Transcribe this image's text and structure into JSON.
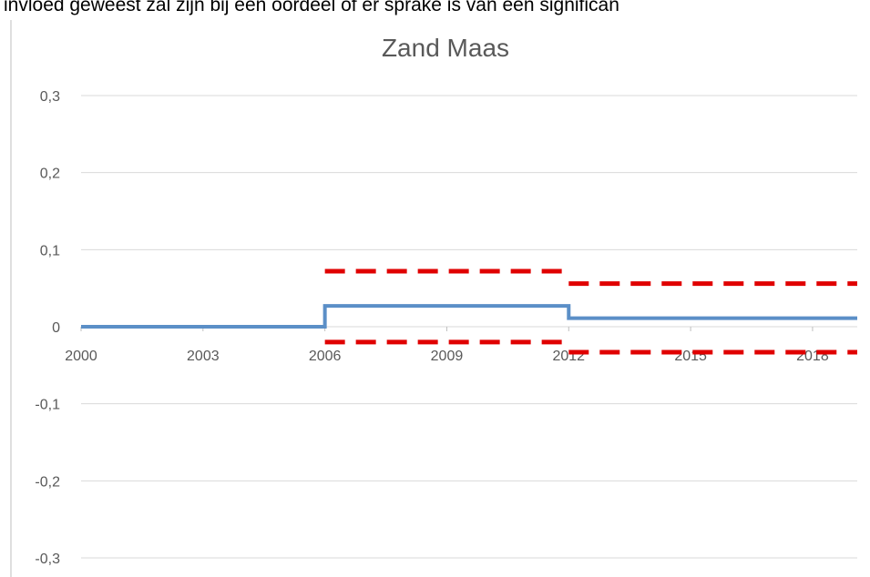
{
  "top_text": "invloed geweest zal zijn bij een oordeel of er sprake is van een significan",
  "chart_data": {
    "type": "line",
    "title": "Zand Maas",
    "xlim": [
      2000,
      2019.1
    ],
    "xticks": [
      2000,
      2003,
      2006,
      2009,
      2012,
      2015,
      2018
    ],
    "ylim": [
      -0.3,
      0.3
    ],
    "yticks": [
      {
        "value": -0.3,
        "label": "-0,3"
      },
      {
        "value": -0.2,
        "label": "-0,2"
      },
      {
        "value": -0.1,
        "label": "-0,1"
      },
      0,
      {
        "value": 0.1,
        "label": "0,1"
      },
      {
        "value": 0.2,
        "label": "0,2"
      },
      {
        "value": 0.3,
        "label": "0,3"
      }
    ],
    "grid": true,
    "series": [
      {
        "color": "#5b8fc7",
        "dash": false,
        "x": [
          2000,
          2006,
          2006,
          2012,
          2012,
          2019.1
        ],
        "values": [
          0,
          0,
          0.027,
          0.027,
          0.011,
          0.011
        ]
      },
      {
        "color": "#e00000",
        "dash": true,
        "x": [
          2006,
          2012,
          2012,
          2012,
          2019.1
        ],
        "values": [
          0.072,
          0.072,
          null,
          0.056,
          0.056
        ]
      },
      {
        "color": "#e00000",
        "dash": true,
        "x": [
          2006,
          2012,
          2012,
          2012,
          2019.1
        ],
        "values": [
          -0.02,
          -0.02,
          null,
          -0.033,
          -0.033
        ]
      }
    ]
  }
}
